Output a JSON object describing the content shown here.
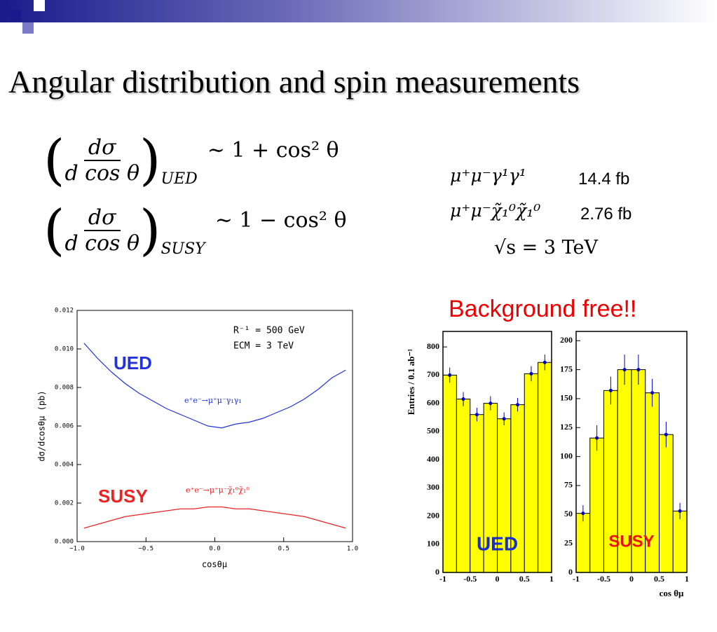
{
  "header": {
    "title": "Angular distribution and spin measurements"
  },
  "formulas": [
    {
      "numerator": "dσ",
      "denominator": "d cos θ",
      "subscript": "UED",
      "relation": "∼ 1 + cos² θ"
    },
    {
      "numerator": "dσ",
      "denominator": "d cos θ",
      "subscript": "SUSY",
      "relation": "∼ 1 − cos² θ"
    }
  ],
  "cross_sections": [
    {
      "process": "μ⁺μ⁻γ¹γ¹",
      "value": "14.4 fb"
    },
    {
      "process": "μ⁺μ⁻χ̃₁⁰χ̃₁⁰",
      "value": "2.76 fb"
    }
  ],
  "energy": "√s = 3 TeV",
  "callout": "Background free!!",
  "chart_data": [
    {
      "type": "line",
      "xlabel": "cosθμ",
      "ylabel": "dσ/dcosθμ (pb)",
      "annotations": [
        "R⁻¹ = 500 GeV",
        "ECM = 3 TeV"
      ],
      "process_labels": [
        "e⁺e⁻→μ⁺μ⁻γ₁γ₁",
        "e⁺e⁻→μ⁺μ⁻χ̃₁⁰χ̃₁⁰"
      ],
      "x": [
        -0.95,
        -0.85,
        -0.75,
        -0.65,
        -0.55,
        -0.45,
        -0.35,
        -0.25,
        -0.15,
        -0.05,
        0.05,
        0.15,
        0.25,
        0.35,
        0.45,
        0.55,
        0.65,
        0.75,
        0.85,
        0.95
      ],
      "series": [
        {
          "name": "UED",
          "color": "#2233dd",
          "values": [
            0.0103,
            0.0095,
            0.0088,
            0.0082,
            0.0077,
            0.0073,
            0.0069,
            0.0066,
            0.0063,
            0.006,
            0.0059,
            0.0061,
            0.0062,
            0.0064,
            0.0067,
            0.007,
            0.0074,
            0.0079,
            0.0085,
            0.0089
          ]
        },
        {
          "name": "SUSY",
          "color": "#ee2222",
          "values": [
            0.0007,
            0.0009,
            0.0011,
            0.0013,
            0.0014,
            0.0015,
            0.0016,
            0.0017,
            0.0017,
            0.0018,
            0.0018,
            0.0017,
            0.0017,
            0.0016,
            0.0015,
            0.0014,
            0.0013,
            0.0011,
            0.0009,
            0.0007
          ]
        }
      ],
      "xlim": [
        -1,
        1
      ],
      "xticks": [
        {
          "value": -1,
          "label": "−1.0"
        },
        {
          "value": -0.5,
          "label": "−0.5"
        },
        {
          "value": 0,
          "label": "0.0"
        },
        {
          "value": 0.5,
          "label": "0.5"
        },
        {
          "value": 1,
          "label": "1.0"
        }
      ],
      "ylim": [
        0,
        0.012
      ],
      "yticks": [
        {
          "value": 0,
          "label": "0.000"
        },
        {
          "value": 0.002,
          "label": "0.002"
        },
        {
          "value": 0.004,
          "label": "0.004"
        },
        {
          "value": 0.006,
          "label": "0.006"
        },
        {
          "value": 0.008,
          "label": "0.008"
        },
        {
          "value": 0.01,
          "label": "0.010"
        },
        {
          "value": 0.012,
          "label": "0.012"
        }
      ]
    },
    {
      "type": "histogram",
      "ylabel": "Entries / 0.1 ab⁻¹",
      "label": "UED",
      "label_color": "#1a2ecc",
      "color": "#ffff00",
      "point_color": "#0000cc",
      "bins": [
        -1,
        -0.75,
        -0.5,
        -0.25,
        0,
        0.25,
        0.5,
        0.75,
        1
      ],
      "values": [
        700,
        615,
        560,
        600,
        545,
        595,
        705,
        745
      ],
      "errors": [
        27,
        25,
        24,
        25,
        23,
        24,
        27,
        28
      ],
      "xlim": [
        -1,
        1
      ],
      "xticks": [
        -1,
        -0.5,
        0,
        0.5,
        1
      ],
      "ylim": [
        0,
        855
      ],
      "yticks": [
        0,
        100,
        200,
        300,
        400,
        500,
        600,
        700,
        800
      ]
    },
    {
      "type": "histogram",
      "xlabel": "cos θμ",
      "label": "SUSY",
      "label_color": "#ee1111",
      "color": "#ffff00",
      "point_color": "#0000cc",
      "bins": [
        -1,
        -0.75,
        -0.5,
        -0.25,
        0,
        0.25,
        0.5,
        0.75,
        1
      ],
      "values": [
        51,
        116,
        157,
        175,
        175,
        155,
        119,
        53
      ],
      "errors": [
        7,
        11,
        12,
        13,
        13,
        12,
        11,
        7
      ],
      "xlim": [
        -1,
        1
      ],
      "xticks": [
        -1,
        -0.5,
        0,
        0.5,
        1
      ],
      "ylim": [
        0,
        208
      ],
      "yticks": [
        0,
        25,
        50,
        75,
        100,
        125,
        150,
        175,
        200
      ]
    }
  ]
}
